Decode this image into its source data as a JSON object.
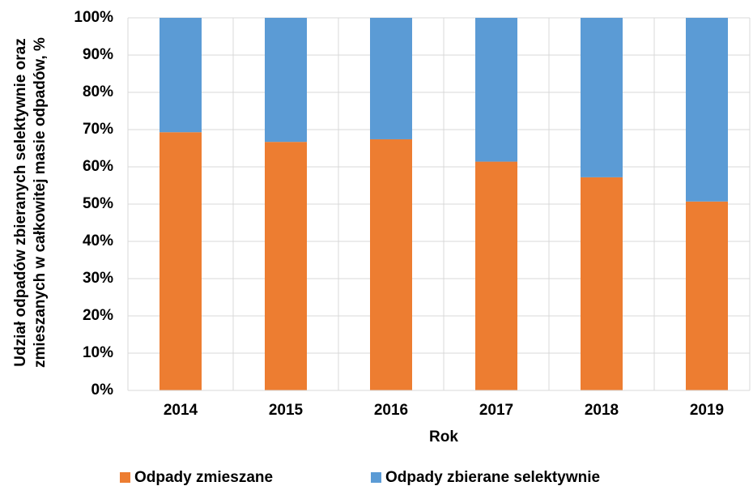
{
  "chart_data": {
    "type": "stacked_bar",
    "x_label": "Rok",
    "y_label": [
      "Udział odpadów zbieranych selektywnie oraz",
      "zmieszanych w całkowitej masie odpadów, %"
    ],
    "categories": [
      "2014",
      "2015",
      "2016",
      "2017",
      "2018",
      "2019"
    ],
    "series": [
      {
        "name": "Odpady zmieszane",
        "color": "#ed7d31",
        "values": [
          69.3,
          66.7,
          67.4,
          61.4,
          57.2,
          50.7
        ]
      },
      {
        "name": "Odpady zbierane selektywnie",
        "color": "#5b9bd5",
        "values": [
          30.7,
          33.3,
          32.6,
          38.6,
          42.8,
          49.3
        ]
      }
    ],
    "ylim": [
      0,
      100
    ],
    "yticks": [
      {
        "value": 0,
        "label": "0%"
      },
      {
        "value": 10,
        "label": "10%"
      },
      {
        "value": 20,
        "label": "20%"
      },
      {
        "value": 30,
        "label": "30%"
      },
      {
        "value": 40,
        "label": "40%"
      },
      {
        "value": 50,
        "label": "50%"
      },
      {
        "value": 60,
        "label": "60%"
      },
      {
        "value": 70,
        "label": "70%"
      },
      {
        "value": 80,
        "label": "80%"
      },
      {
        "value": 90,
        "label": "90%"
      },
      {
        "value": 100,
        "label": "100%"
      }
    ],
    "grid": true,
    "legend": "bottom"
  }
}
